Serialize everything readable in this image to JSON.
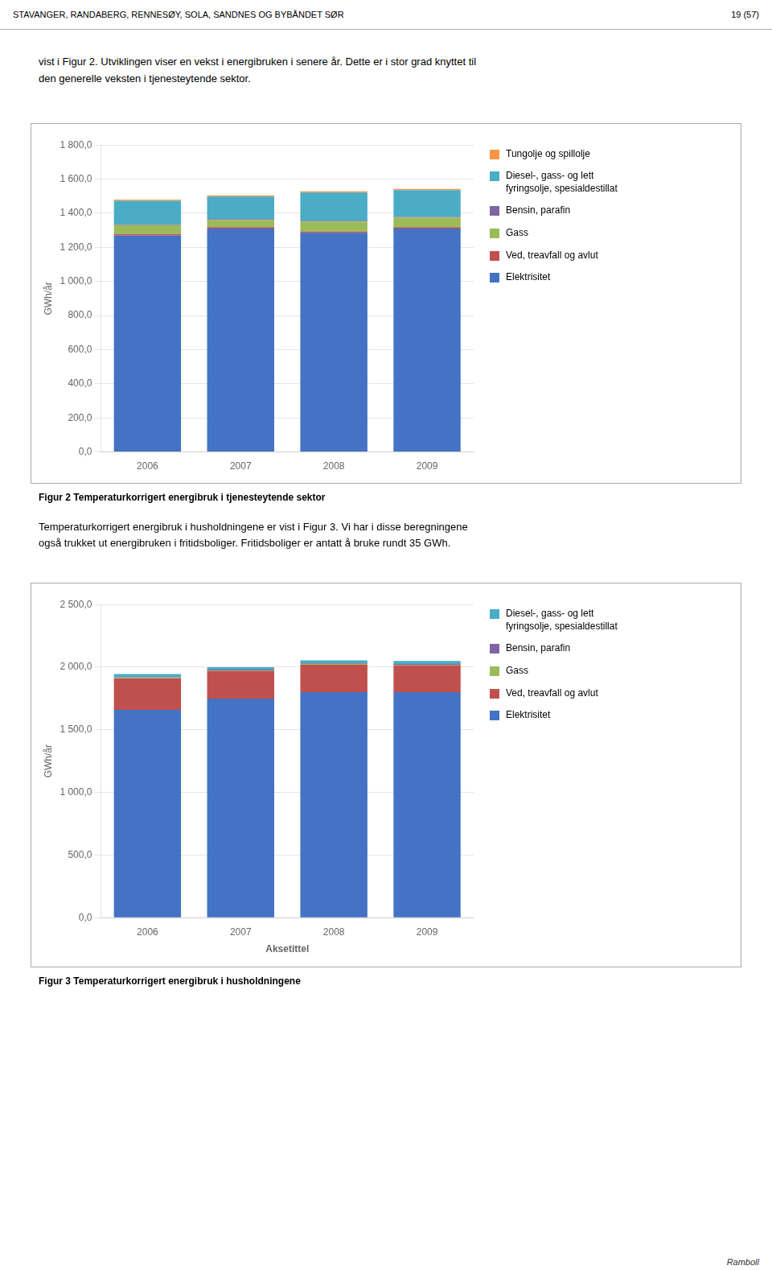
{
  "chart_data": [
    {
      "type": "bar",
      "stacked": true,
      "title": "Figur 2 Temperaturkorrigert energibruk i tjenesteytende sektor",
      "categories": [
        "2006",
        "2007",
        "2008",
        "2009"
      ],
      "series": [
        {
          "name": "Elektrisitet",
          "color": "#4472C4",
          "values": [
            1270,
            1310,
            1285,
            1310
          ]
        },
        {
          "name": "Ved, treavfall og avlut",
          "color": "#C0504D",
          "values": [
            8,
            8,
            8,
            8
          ]
        },
        {
          "name": "Gass",
          "color": "#9BBB59",
          "values": [
            52,
            42,
            58,
            56
          ]
        },
        {
          "name": "Bensin, parafin",
          "color": "#8064A2",
          "values": [
            5,
            5,
            5,
            5
          ]
        },
        {
          "name": "Diesel-, gass- og lett\nfyringsolje, spesialdestillat",
          "color": "#4BACC6",
          "values": [
            138,
            133,
            165,
            157
          ]
        },
        {
          "name": "Tungolje og spillolje",
          "color": "#F79646",
          "values": [
            7,
            7,
            7,
            7
          ]
        }
      ],
      "ylabel": "GWh/år",
      "ylim": [
        0,
        1800
      ],
      "yticks": [
        {
          "value": 0,
          "label": "0,0"
        },
        {
          "value": 200,
          "label": "200,0"
        },
        {
          "value": 400,
          "label": "400,0"
        },
        {
          "value": 600,
          "label": "600,0"
        },
        {
          "value": 800,
          "label": "800,0"
        },
        {
          "value": 1000,
          "label": "1 000,0"
        },
        {
          "value": 1200,
          "label": "1 200,0"
        },
        {
          "value": 1400,
          "label": "1 400,0"
        },
        {
          "value": 1600,
          "label": "1 600,0"
        },
        {
          "value": 1800,
          "label": "1 800,0"
        }
      ],
      "grid": true,
      "legend": "right",
      "annotations": [
        "STAVANGER, RANDABERG, RENNESØY, SOLA, SANDNES OG BYBÅNDET SØR",
        "19 (57)",
        "vist i Figur 2. Utviklingen viser en vekst i energibruken i senere år. Dette er i stor grad knyttet til",
        "den generelle veksten i tjenesteytende sektor."
      ]
    },
    {
      "type": "bar",
      "stacked": true,
      "title": "Figur 3 Temperaturkorrigert energibruk i husholdningene",
      "categories": [
        "2006",
        "2007",
        "2008",
        "2009"
      ],
      "series": [
        {
          "name": "Elektrisitet",
          "color": "#4472C4",
          "values": [
            1660,
            1750,
            1800,
            1800
          ]
        },
        {
          "name": "Ved, treavfall og avlut",
          "color": "#C0504D",
          "values": [
            250,
            220,
            220,
            215
          ]
        },
        {
          "name": "Gass",
          "color": "#9BBB59",
          "values": [
            5,
            5,
            5,
            5
          ]
        },
        {
          "name": "Bensin, parafin",
          "color": "#8064A2",
          "values": [
            5,
            5,
            5,
            5
          ]
        },
        {
          "name": "Diesel-, gass- og lett\nfyringsolje, spesialdestillat",
          "color": "#4BACC6",
          "values": [
            25,
            20,
            25,
            25
          ]
        }
      ],
      "xlabel": "Aksetittel",
      "ylabel": "GWh/år",
      "ylim": [
        0,
        2500
      ],
      "yticks": [
        {
          "value": 0,
          "label": "0,0"
        },
        {
          "value": 500,
          "label": "500,0"
        },
        {
          "value": 1000,
          "label": "1 000,0"
        },
        {
          "value": 1500,
          "label": "1 500,0"
        },
        {
          "value": 2000,
          "label": "2 000,0"
        },
        {
          "value": 2500,
          "label": "2 500,0"
        }
      ],
      "grid": true,
      "legend": "right",
      "annotations": [
        "Temperaturkorrigert energibruk i husholdningene er vist i Figur 3. Vi har i disse beregningene",
        "også trukket ut energibruken i fritidsboliger. Fritidsboliger er antatt å bruke rundt 35 GWh.",
        "Ramboll"
      ]
    }
  ]
}
